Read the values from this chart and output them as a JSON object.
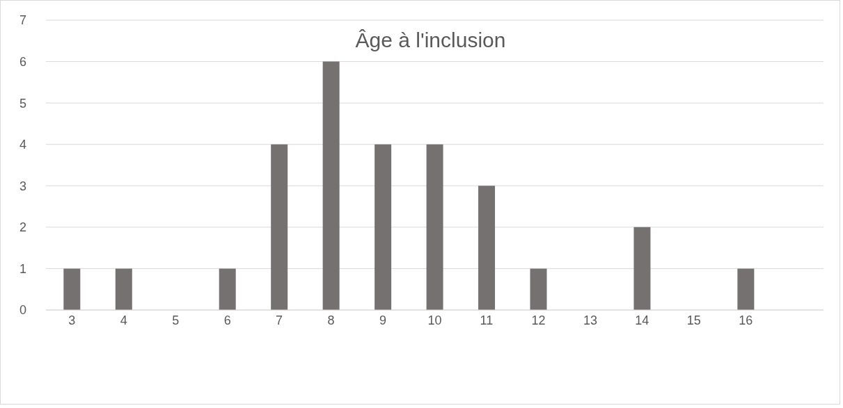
{
  "chart_data": {
    "type": "bar",
    "title": "Âge à l'inclusion",
    "categories": [
      "3",
      "4",
      "5",
      "6",
      "7",
      "8",
      "9",
      "10",
      "11",
      "12",
      "13",
      "14",
      "15",
      "16",
      null
    ],
    "values": [
      1,
      1,
      0,
      1,
      4,
      6,
      4,
      4,
      3,
      1,
      0,
      2,
      0,
      1,
      null
    ],
    "color": "#767171",
    "ylim": [
      0,
      7
    ],
    "yticks": [
      0,
      1,
      2,
      3,
      4,
      5,
      6,
      7
    ],
    "grid": "y"
  }
}
